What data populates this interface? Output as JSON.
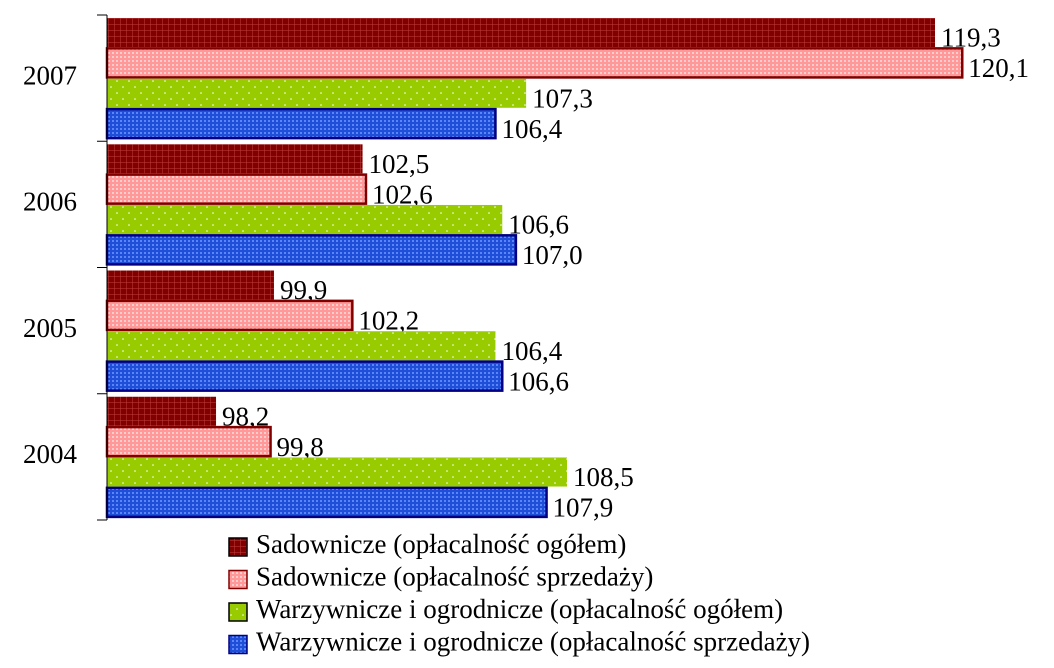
{
  "chart_data": {
    "type": "hbar",
    "categories": [
      "2007",
      "2006",
      "2005",
      "2004"
    ],
    "series": [
      {
        "name": "Sadownicze (opłacalność ogółem)",
        "color": "#800000",
        "values": [
          119.3,
          102.5,
          99.9,
          98.2
        ],
        "value_labels": [
          "119,3",
          "102,5",
          "99,9",
          "98,2"
        ]
      },
      {
        "name": "Sadownicze (opłacalność sprzedaży)",
        "color": "#ff9999",
        "values": [
          120.1,
          102.6,
          102.2,
          99.8
        ],
        "value_labels": [
          "120,1",
          "102,6",
          "102,2",
          "99,8"
        ]
      },
      {
        "name": "Warzywnicze i ogrodnicze (opłacalność ogółem)",
        "color": "#99cc00",
        "values": [
          107.3,
          106.6,
          106.4,
          108.5
        ],
        "value_labels": [
          "107,3",
          "106,6",
          "106,4",
          "108,5"
        ]
      },
      {
        "name": "Warzywnicze i ogrodnicze (opłacalność sprzedaży)",
        "color": "#1f4fd6",
        "values": [
          106.4,
          107.0,
          106.6,
          107.9
        ],
        "value_labels": [
          "106,4",
          "107,0",
          "106,6",
          "107,9"
        ]
      }
    ],
    "xlim": [
      95,
      122
    ],
    "legend": "bottom"
  }
}
